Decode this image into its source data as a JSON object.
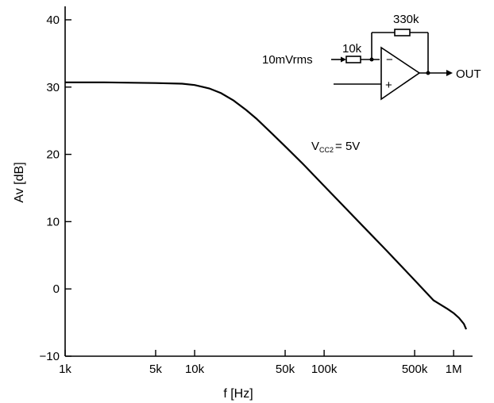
{
  "chart_data": {
    "type": "line",
    "xscale": "log",
    "xlabel": "f [Hz]",
    "ylabel": "Av [dB]",
    "xlim": [
      1000,
      1400000
    ],
    "ylim": [
      -10,
      42
    ],
    "grid": false,
    "legend": "none",
    "x_ticks": [
      {
        "value": 1000,
        "label": "1k"
      },
      {
        "value": 5000,
        "label": "5k"
      },
      {
        "value": 10000,
        "label": "10k"
      },
      {
        "value": 50000,
        "label": "50k"
      },
      {
        "value": 100000,
        "label": "100k"
      },
      {
        "value": 500000,
        "label": "500k"
      },
      {
        "value": 1000000,
        "label": "1M"
      }
    ],
    "y_ticks": [
      {
        "value": 40,
        "label": "40"
      },
      {
        "value": 30,
        "label": "30"
      },
      {
        "value": 20,
        "label": "20"
      },
      {
        "value": 10,
        "label": "10"
      },
      {
        "value": 0,
        "label": "0"
      },
      {
        "value": -10,
        "label": "−10"
      }
    ],
    "series": [
      {
        "x": [
          1000,
          2000,
          5000,
          8000,
          10000,
          13000,
          16000,
          20000,
          25000,
          30000,
          40000,
          50000,
          70000,
          100000,
          150000,
          200000,
          300000,
          500000,
          700000,
          900000,
          1000000,
          1100000,
          1200000,
          1250000
        ],
        "y": [
          30.7,
          30.7,
          30.6,
          30.5,
          30.3,
          29.8,
          29.1,
          28.0,
          26.6,
          25.3,
          23.0,
          21.2,
          18.4,
          15.3,
          11.8,
          9.3,
          5.8,
          1.3,
          -1.7,
          -3.0,
          -3.6,
          -4.3,
          -5.2,
          -6.0
        ]
      }
    ],
    "annotations": [
      {
        "label": "V",
        "sub": "CC2",
        "rest": "= 5V"
      }
    ]
  },
  "circuit": {
    "input_label": "10mVrms",
    "input_resistor": "10k",
    "feedback_resistor": "330k",
    "inverting_sign": "−",
    "noninverting_sign": "+",
    "output_label": "OUT"
  }
}
